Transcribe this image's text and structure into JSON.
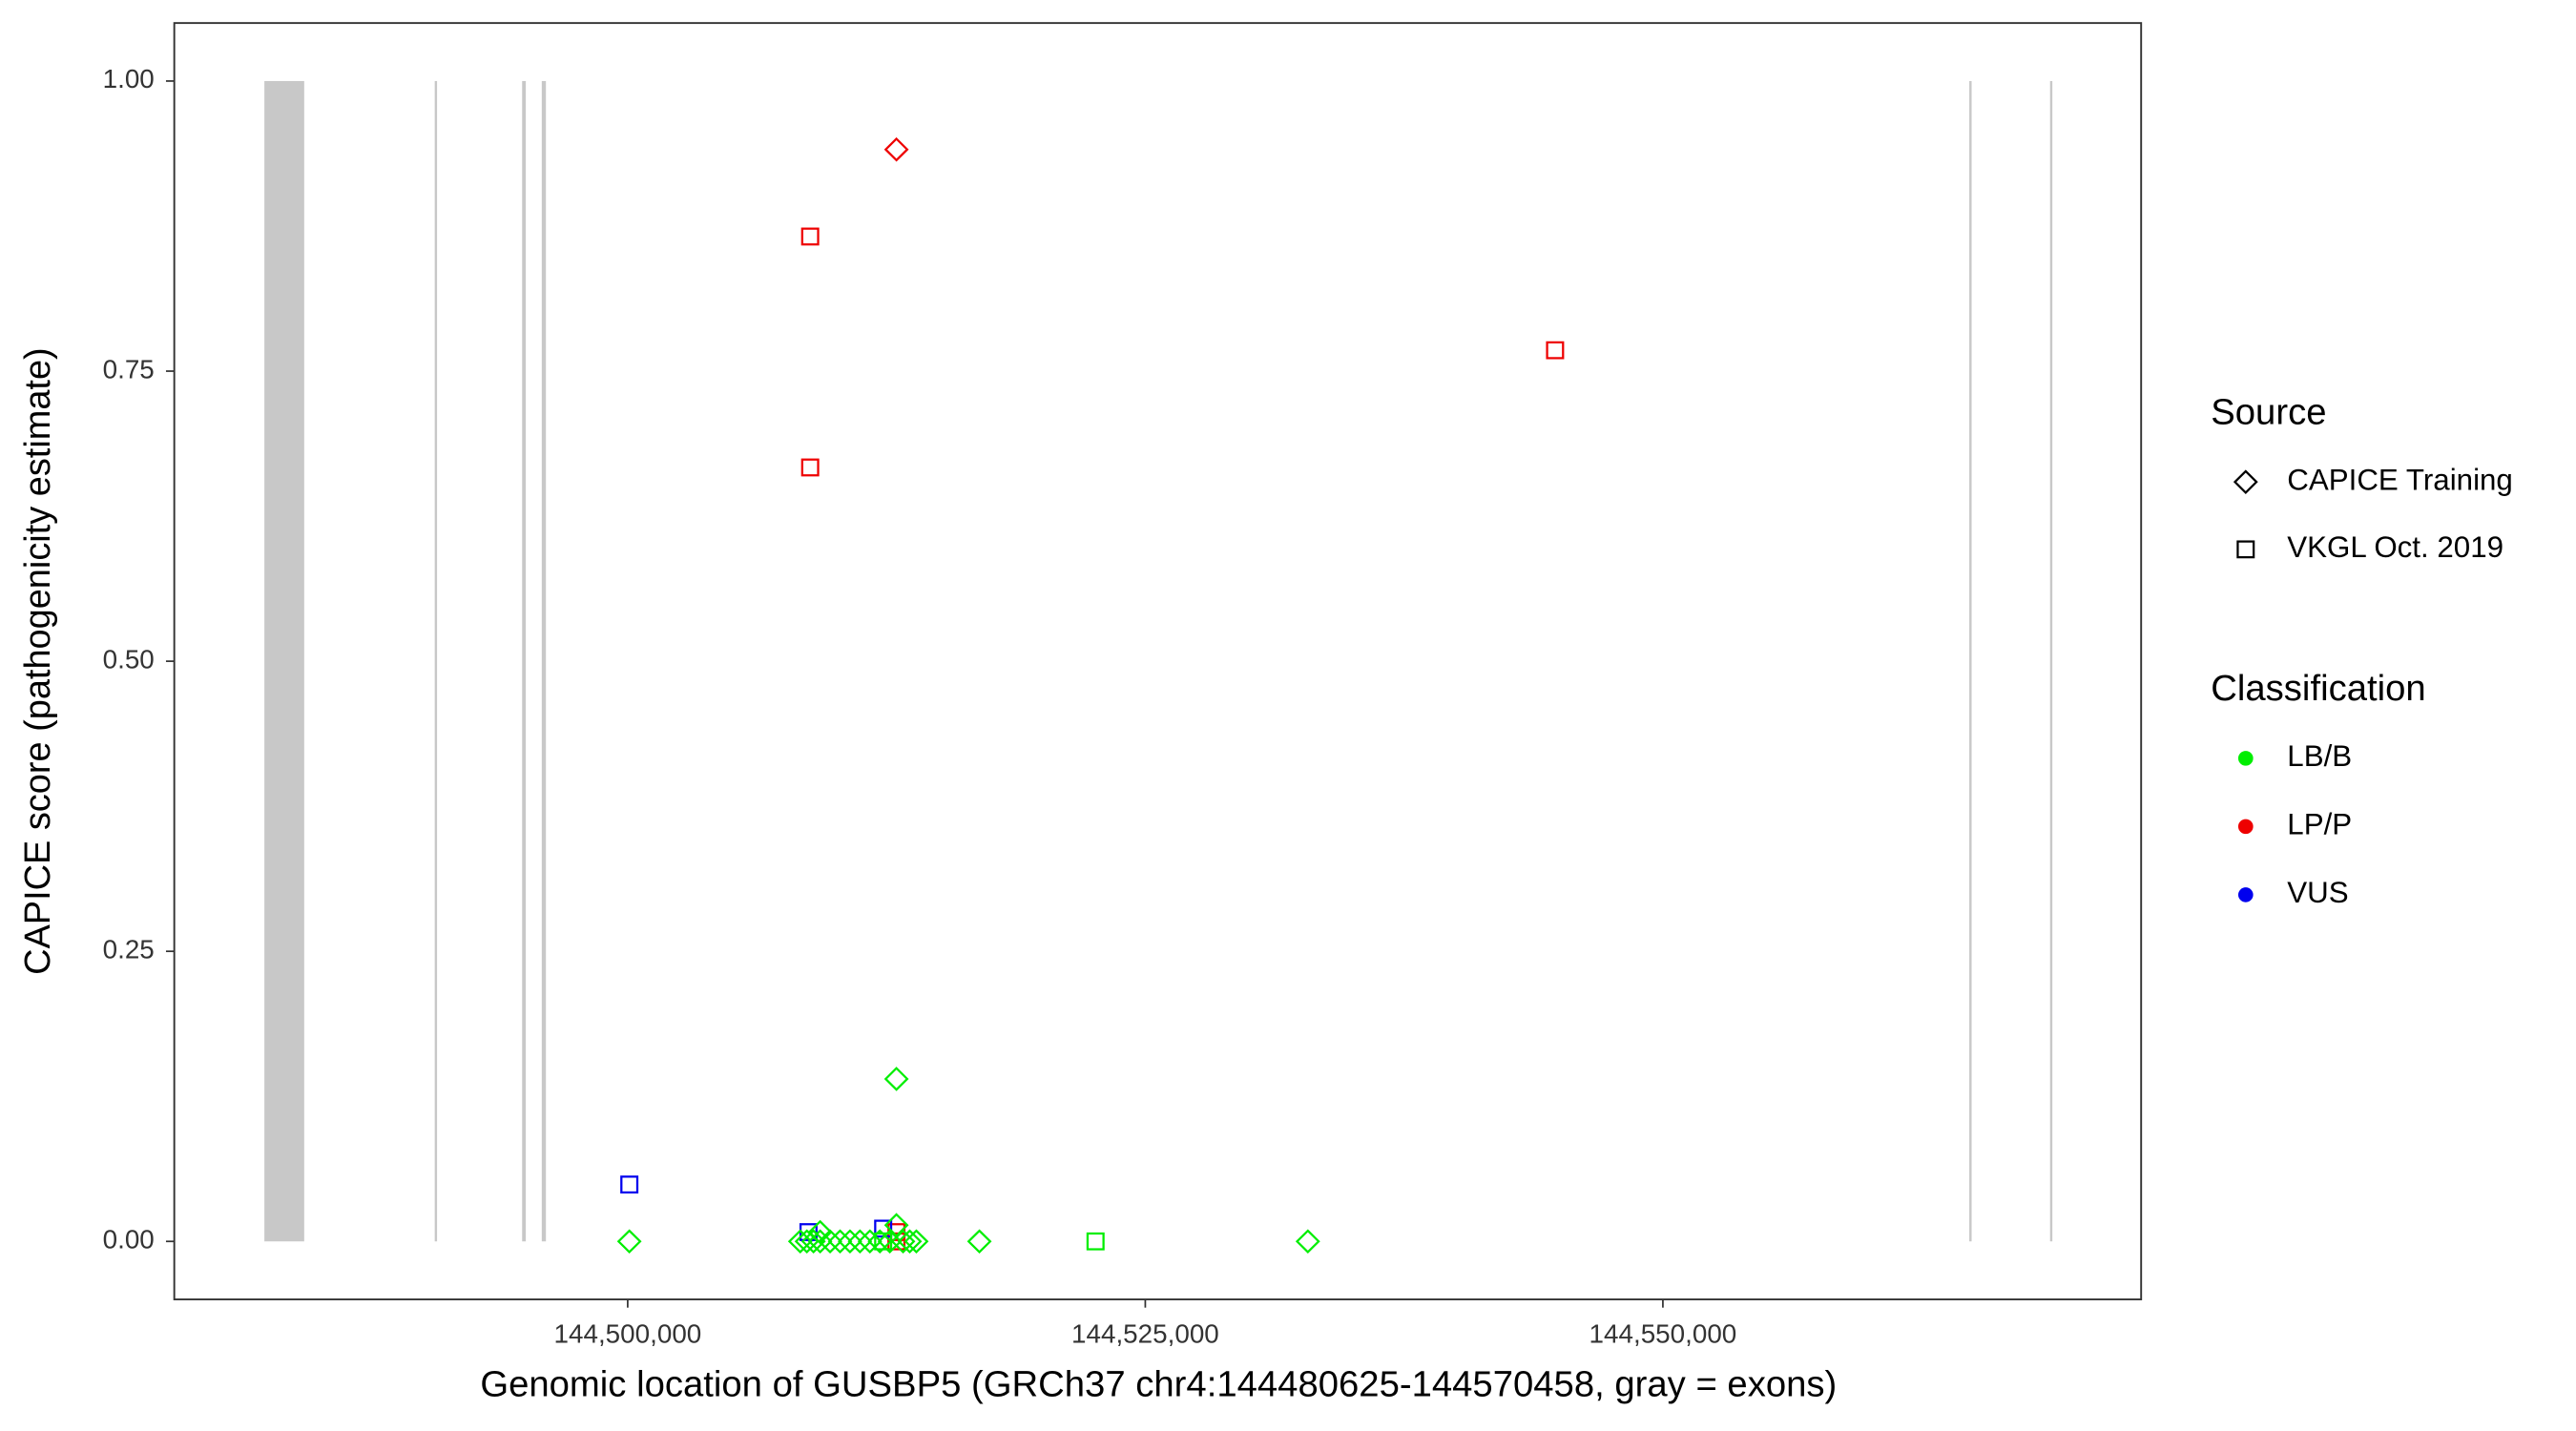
{
  "chart_data": {
    "type": "scatter",
    "x_label": "Genomic location of GUSBP5 (GRCh37 chr4:144480625-144570458, gray = exons)",
    "y_label": "CAPICE score (pathogenicity estimate)",
    "xlim": [
      144478100,
      144573100
    ],
    "ylim": [
      -0.05,
      1.05
    ],
    "xticks": [
      {
        "value": 144500000,
        "label": "144,500,000"
      },
      {
        "value": 144525000,
        "label": "144,525,000"
      },
      {
        "value": 144550000,
        "label": "144,550,000"
      }
    ],
    "yticks": [
      {
        "value": 0,
        "label": "0.00"
      },
      0.25,
      {
        "value": 0.5,
        "label": "0.50"
      },
      0.75,
      {
        "value": 1,
        "label": "1.00"
      }
    ],
    "grid": false,
    "exon_color": "#c8c8c8",
    "exons": [
      [
        144482452,
        144484375
      ],
      [
        144490680,
        144490730
      ],
      [
        144494900,
        144495080
      ],
      [
        144495850,
        144496050
      ],
      [
        144564800,
        144564850
      ],
      [
        144568700,
        144568800
      ]
    ],
    "legend": {
      "source": {
        "title": "Source",
        "items": [
          {
            "name": "CAPICE Training",
            "shape": "diamond"
          },
          {
            "name": "VKGL Oct. 2019",
            "shape": "square"
          }
        ]
      },
      "classification": {
        "title": "Classification",
        "items": [
          {
            "name": "LB/B",
            "color": "#00ee00"
          },
          {
            "name": "LP/P",
            "color": "#ee0000"
          },
          {
            "name": "VUS",
            "color": "#0000ee"
          }
        ]
      }
    },
    "points": [
      {
        "x": 144508814,
        "y": 0.866,
        "source": "VKGL Oct. 2019",
        "classification": "LP/P"
      },
      {
        "x": 144508814,
        "y": 0.667,
        "source": "VKGL Oct. 2019",
        "classification": "LP/P"
      },
      {
        "x": 144544793,
        "y": 0.768,
        "source": "VKGL Oct. 2019",
        "classification": "LP/P"
      },
      {
        "x": 144512981,
        "y": 0.008,
        "source": "VKGL Oct. 2019",
        "classification": "LP/P"
      },
      {
        "x": 144512981,
        "y": 0,
        "source": "VKGL Oct. 2019",
        "classification": "LP/P"
      },
      {
        "x": 144512981,
        "y": 0.941,
        "source": "CAPICE Training",
        "classification": "LP/P"
      },
      {
        "x": 144500080,
        "y": 0.049,
        "source": "VKGL Oct. 2019",
        "classification": "VUS"
      },
      {
        "x": 144508734,
        "y": 0.008,
        "source": "VKGL Oct. 2019",
        "classification": "VUS"
      },
      {
        "x": 144512340,
        "y": 0.011,
        "source": "VKGL Oct. 2019",
        "classification": "VUS"
      },
      {
        "x": 144500080,
        "y": 0,
        "source": "CAPICE Training",
        "classification": "LB/B"
      },
      {
        "x": 144512981,
        "y": 0.14,
        "source": "CAPICE Training",
        "classification": "LB/B"
      },
      {
        "x": 144516988,
        "y": 0,
        "source": "CAPICE Training",
        "classification": "LB/B"
      },
      {
        "x": 144532853,
        "y": 0,
        "source": "CAPICE Training",
        "classification": "LB/B"
      },
      {
        "x": 144509295,
        "y": 0.008,
        "source": "CAPICE Training",
        "classification": "LB/B"
      },
      {
        "x": 144512981,
        "y": 0.014,
        "source": "CAPICE Training",
        "classification": "LB/B"
      },
      {
        "x": 144508334,
        "y": 0,
        "source": "CAPICE Training",
        "classification": "LB/B"
      },
      {
        "x": 144508654,
        "y": 0,
        "source": "CAPICE Training",
        "classification": "LB/B"
      },
      {
        "x": 144508975,
        "y": 0,
        "source": "CAPICE Training",
        "classification": "LB/B"
      },
      {
        "x": 144509295,
        "y": 0,
        "source": "CAPICE Training",
        "classification": "LB/B"
      },
      {
        "x": 144509776,
        "y": 0,
        "source": "CAPICE Training",
        "classification": "LB/B"
      },
      {
        "x": 144510257,
        "y": 0,
        "source": "CAPICE Training",
        "classification": "LB/B"
      },
      {
        "x": 144510738,
        "y": 0,
        "source": "CAPICE Training",
        "classification": "LB/B"
      },
      {
        "x": 144511218,
        "y": 0,
        "source": "CAPICE Training",
        "classification": "LB/B"
      },
      {
        "x": 144511699,
        "y": 0,
        "source": "CAPICE Training",
        "classification": "LB/B"
      },
      {
        "x": 144512180,
        "y": 0,
        "source": "CAPICE Training",
        "classification": "LB/B"
      },
      {
        "x": 144512661,
        "y": 0,
        "source": "CAPICE Training",
        "classification": "LB/B"
      },
      {
        "x": 144513301,
        "y": 0,
        "source": "CAPICE Training",
        "classification": "LB/B"
      },
      {
        "x": 144513622,
        "y": 0,
        "source": "CAPICE Training",
        "classification": "LB/B"
      },
      {
        "x": 144513942,
        "y": 0,
        "source": "CAPICE Training",
        "classification": "LB/B"
      },
      {
        "x": 144522597,
        "y": 0,
        "source": "VKGL Oct. 2019",
        "classification": "LB/B"
      },
      {
        "x": 144512340,
        "y": 0,
        "source": "VKGL Oct. 2019",
        "classification": "LB/B"
      }
    ]
  }
}
